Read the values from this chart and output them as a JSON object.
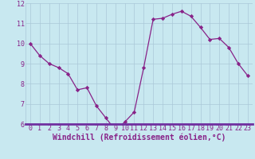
{
  "x": [
    0,
    1,
    2,
    3,
    4,
    5,
    6,
    7,
    8,
    9,
    10,
    11,
    12,
    13,
    14,
    15,
    16,
    17,
    18,
    19,
    20,
    21,
    22,
    23
  ],
  "y": [
    10.0,
    9.4,
    9.0,
    8.8,
    8.5,
    7.7,
    7.8,
    6.9,
    6.3,
    5.7,
    6.1,
    6.6,
    8.8,
    11.2,
    11.25,
    11.45,
    11.6,
    11.35,
    10.8,
    10.2,
    10.25,
    9.8,
    9.0,
    8.4
  ],
  "line_color": "#882288",
  "marker": "D",
  "marker_size": 2.2,
  "bg_color": "#c8e8f0",
  "grid_color": "#aac8d8",
  "xlabel": "Windchill (Refroidissement éolien,°C)",
  "ylim": [
    6,
    12
  ],
  "xlim": [
    -0.5,
    23.5
  ],
  "xticks": [
    0,
    1,
    2,
    3,
    4,
    5,
    6,
    7,
    8,
    9,
    10,
    11,
    12,
    13,
    14,
    15,
    16,
    17,
    18,
    19,
    20,
    21,
    22,
    23
  ],
  "yticks": [
    6,
    7,
    8,
    9,
    10,
    11,
    12
  ],
  "tick_fontsize": 6.0,
  "xlabel_fontsize": 7.0,
  "spine_color": "#7030a0",
  "xaxis_bar_color": "#7030a0"
}
